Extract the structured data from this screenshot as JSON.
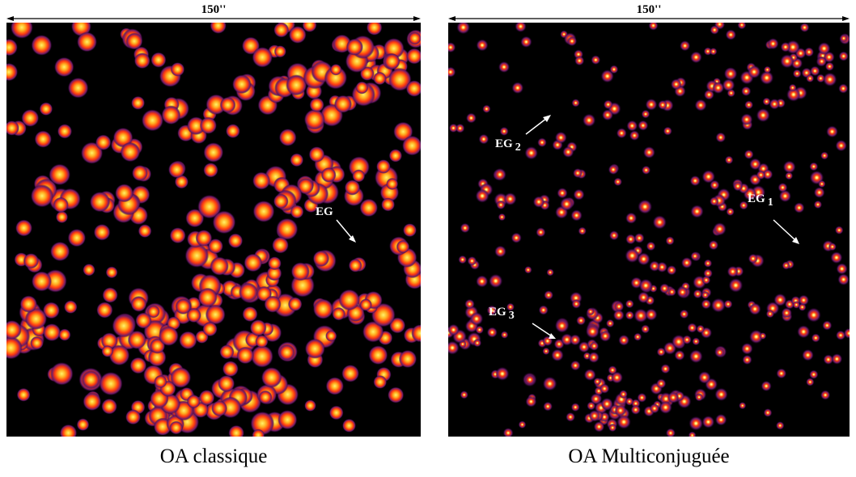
{
  "panels": [
    {
      "scale_label": "150''",
      "caption": "OA classique",
      "annotations": [
        {
          "label": "EG",
          "subscript": ""
        }
      ]
    },
    {
      "scale_label": "150''",
      "caption": "OA Multiconjuguée",
      "annotations": [
        {
          "label": "EG",
          "subscript": "2"
        },
        {
          "label": "EG",
          "subscript": "1"
        },
        {
          "label": "EG",
          "subscript": "3"
        }
      ]
    }
  ],
  "colors": {
    "background": "#000000",
    "star_core": "#fff36a",
    "star_mid": "#ff3a10",
    "star_halo": "#6a1a6a"
  }
}
